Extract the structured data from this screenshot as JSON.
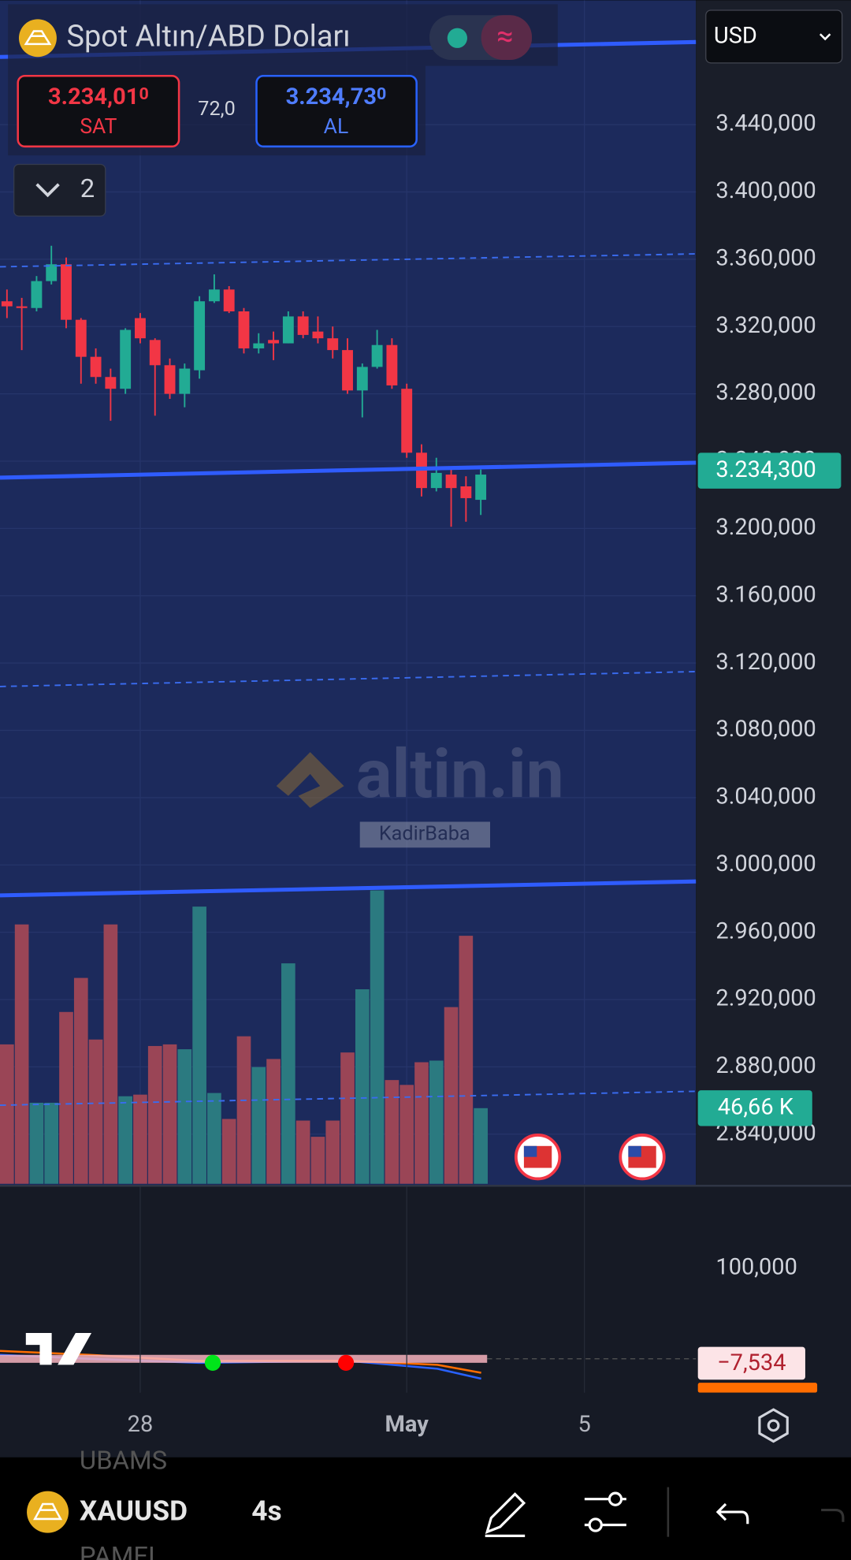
{
  "ui": {
    "title": "Spot Altın/ABD Doları",
    "sell_price": "3.234,01",
    "sell_price_tail": "0",
    "sell_label": "SAT",
    "spread": "72,0",
    "buy_price": "3.234,73",
    "buy_price_tail": "0",
    "buy_label": "AL",
    "collapsed_count": "2",
    "currency": "USD",
    "watermark": "altin.in",
    "watermark_user": "KadirBaba",
    "oscillator_tick": "100,000",
    "oscillator_value_label": "−7,534",
    "ghost_text_top": "UBAMS",
    "ghost_text_bottom": "PAMEL",
    "symbol": "XAUUSD",
    "interval": "4s"
  },
  "chart_data": {
    "type": "candlestick",
    "open": [
      3335,
      3332,
      3331,
      3347,
      3357,
      3324,
      3302,
      3290,
      3283,
      3325,
      3312,
      3297,
      3280,
      3294,
      3335,
      3342,
      3329,
      3307,
      3312,
      3310,
      3326,
      3317,
      3313,
      3306,
      3282,
      3296,
      3309,
      3283,
      3245,
      3224,
      3232,
      3225,
      3217
    ],
    "high": [
      3342,
      3337,
      3350,
      3368,
      3361,
      3325,
      3307,
      3295,
      3319,
      3328,
      3313,
      3301,
      3298,
      3338,
      3351,
      3344,
      3331,
      3316,
      3317,
      3329,
      3329,
      3326,
      3320,
      3313,
      3298,
      3318,
      3313,
      3286,
      3250,
      3242,
      3235,
      3231,
      3235
    ],
    "low": [
      3325,
      3306,
      3329,
      3345,
      3319,
      3286,
      3286,
      3264,
      3280,
      3310,
      3267,
      3277,
      3272,
      3289,
      3334,
      3328,
      3304,
      3304,
      3300,
      3310,
      3313,
      3310,
      3301,
      3280,
      3266,
      3295,
      3283,
      3242,
      3219,
      3222,
      3201,
      3204,
      3208
    ],
    "close": [
      3332,
      3331,
      3347,
      3357,
      3324,
      3302,
      3290,
      3283,
      3318,
      3313,
      3297,
      3280,
      3295,
      3335,
      3342,
      3329,
      3307,
      3310,
      3310,
      3326,
      3315,
      3313,
      3306,
      3282,
      3296,
      3309,
      3285,
      3245,
      3224,
      3233,
      3224,
      3218,
      3232
    ],
    "volume": [
      86,
      160,
      50,
      50,
      106,
      127,
      89,
      160,
      54,
      55,
      85,
      86,
      83,
      171,
      56,
      40,
      91,
      72,
      77,
      136,
      39,
      29,
      39,
      81,
      120,
      181,
      64,
      61,
      75,
      76,
      109,
      153,
      46.66
    ],
    "last_volume_label": "46,66 K",
    "last_price": 3234.3,
    "last_price_label": "3.234,300",
    "up_color": "#22ab94",
    "down_color": "#f23645",
    "volume_up_color": "#2b7a80",
    "volume_down_color": "#9a4556",
    "ylim": [
      2810.5,
      3513.9
    ],
    "yticks": [
      {
        "value": 3440,
        "label": "3.440,000"
      },
      {
        "value": 3400,
        "label": "3.400,000"
      },
      {
        "value": 3360,
        "label": "3.360,000"
      },
      {
        "value": 3320,
        "label": "3.320,000"
      },
      {
        "value": 3280,
        "label": "3.280,000"
      },
      {
        "value": 3240,
        "label": "3.240,000"
      },
      {
        "value": 3200,
        "label": "3.200,000"
      },
      {
        "value": 3160,
        "label": "3.160,000"
      },
      {
        "value": 3120,
        "label": "3.120,000"
      },
      {
        "value": 3080,
        "label": "3.080,000"
      },
      {
        "value": 3040,
        "label": "3.040,000"
      },
      {
        "value": 3000,
        "label": "3.000,000"
      },
      {
        "value": 2960,
        "label": "2.960,000"
      },
      {
        "value": 2920,
        "label": "2.920,000"
      },
      {
        "value": 2880,
        "label": "2.880,000"
      },
      {
        "value": 2840,
        "label": "2.840,000"
      }
    ],
    "xlim": [
      -0.47,
      46.53
    ],
    "xticks": [
      {
        "value": 9,
        "label": "28"
      },
      {
        "value": 27,
        "label": "May"
      },
      {
        "value": 39,
        "label": "5"
      }
    ],
    "grid": true
  }
}
